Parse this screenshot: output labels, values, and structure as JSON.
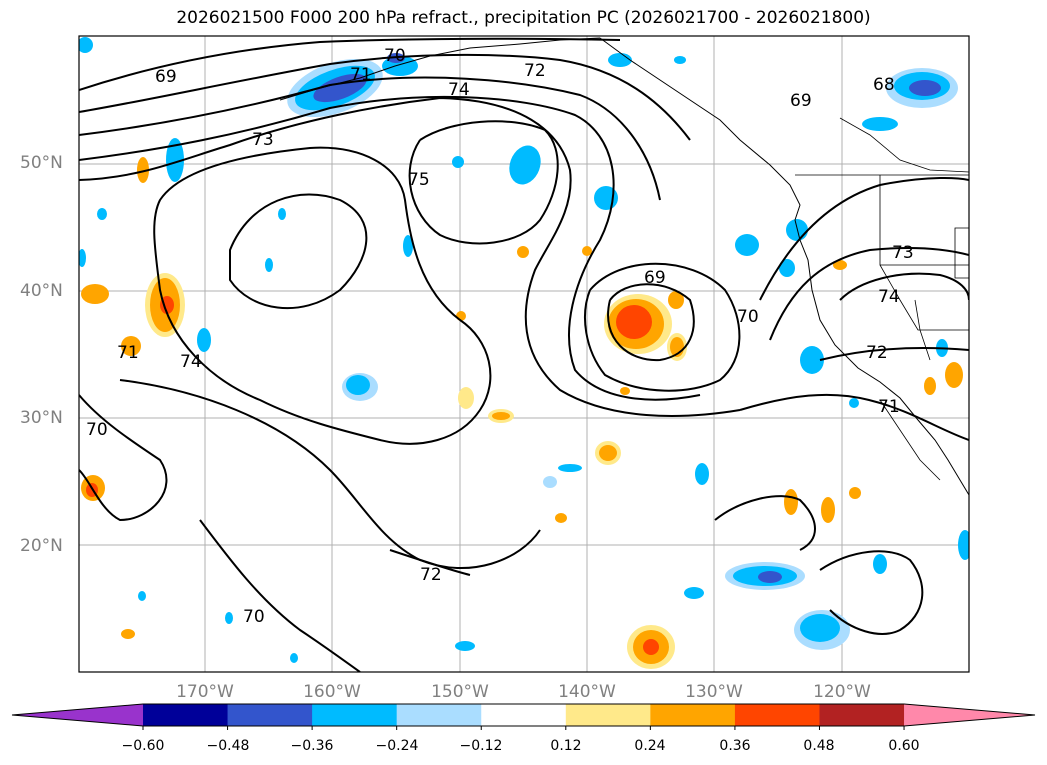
{
  "title": "2026021500 F000 200 hPa refract., precipitation PC (2026021700 - 2026021800)",
  "map": {
    "lat_labels": [
      "50°N",
      "40°N",
      "30°N",
      "20°N"
    ],
    "lon_labels": [
      "170°W",
      "160°W",
      "150°W",
      "140°W",
      "130°W",
      "120°W"
    ],
    "contour_labels": [
      "69",
      "70",
      "71",
      "72",
      "74",
      "73",
      "75",
      "69",
      "69",
      "70",
      "68",
      "73",
      "74",
      "72",
      "71",
      "71",
      "74",
      "70",
      "72",
      "70"
    ]
  },
  "colorbar": {
    "colors": [
      "#9933cc",
      "#000099",
      "#3355cc",
      "#00bbff",
      "#aaddff",
      "#ffffff",
      "#ffe98a",
      "#ffa500",
      "#ff4500",
      "#b22222",
      "#ff88aa"
    ],
    "tick_labels": [
      "−0.60",
      "−0.48",
      "−0.36",
      "−0.24",
      "−0.12",
      "0.12",
      "0.24",
      "0.36",
      "0.48",
      "0.60"
    ]
  }
}
